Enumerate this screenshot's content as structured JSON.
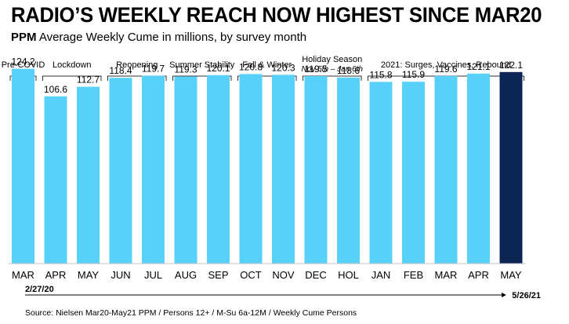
{
  "title": "RADIO’S WEEKLY REACH NOW HIGHEST SINCE MAR20",
  "subtitle_bold": "PPM",
  "subtitle_rest": " Average Weekly Cume in millions, by survey month",
  "source": "Source:  Nielsen  Mar20-May21  PPM / Persons 12+ / M-Su 6a-12M / Weekly Cume Persons",
  "timeline": {
    "start": "2/27/20",
    "end": "5/26/21"
  },
  "colors": {
    "bar": "#57d1fa",
    "highlight": "#0c2456",
    "bracket": "#333333"
  },
  "chart_data": {
    "type": "bar",
    "categories": [
      "MAR",
      "APR",
      "MAY",
      "JUN",
      "JUL",
      "AUG",
      "SEP",
      "OCT",
      "NOV",
      "DEC",
      "HOL",
      "JAN",
      "FEB",
      "MAR",
      "APR",
      "MAY"
    ],
    "values": [
      124.2,
      106.6,
      112.7,
      118.4,
      119.7,
      119.3,
      120.1,
      120.8,
      120.3,
      119.5,
      118.6,
      115.8,
      115.9,
      119.6,
      121.1,
      122.1
    ],
    "highlight_index": 15,
    "groups": [
      {
        "label": "Pre-COVID",
        "start": 0,
        "end": 0
      },
      {
        "label": "Lockdown",
        "start": 1,
        "end": 2
      },
      {
        "label": "Reopening",
        "start": 3,
        "end": 4
      },
      {
        "label": "Summer Stability",
        "start": 5,
        "end": 6
      },
      {
        "label": "Fall & Winter",
        "start": 7,
        "end": 8
      },
      {
        "label": "Holiday Season",
        "sublabel": "Nov 5th – Jan 6th",
        "start": 9,
        "end": 10
      },
      {
        "label": "2021:  Surges, Vaccines, Rebound",
        "start": 11,
        "end": 15
      }
    ],
    "xlabel": "",
    "ylabel": ""
  }
}
